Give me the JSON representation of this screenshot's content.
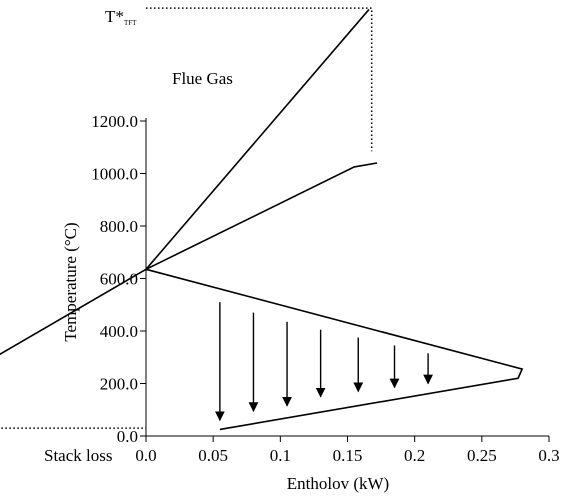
{
  "chart_data": {
    "type": "line",
    "title": "",
    "xlabel": "Entholov (kW)",
    "ylabel": "Temperature (°C)",
    "xlim": [
      0.0,
      0.3
    ],
    "ylim": [
      0.0,
      1200.0
    ],
    "x_ticks": [
      "0.0",
      "0.05",
      "0.1",
      "0.15",
      "0.2",
      "0.25",
      "0.3"
    ],
    "x_tick_values": [
      0.0,
      0.05,
      0.1,
      0.15,
      0.2,
      0.25,
      0.3
    ],
    "y_ticks": [
      "0.0",
      "200.0",
      "400.0",
      "600.0",
      "800.0",
      "1000.0",
      "1200.0"
    ],
    "y_tick_values": [
      0,
      200,
      400,
      600,
      800,
      1000,
      1200
    ],
    "top_label": {
      "main": "T*",
      "sub": "TFT"
    },
    "stack_label": "Stack loss",
    "annotation": "Flue Gas",
    "colors": {
      "line": "#000000",
      "background": "#ffffff"
    },
    "series": [
      {
        "x": [
          0.0,
          0.166
        ],
        "y": [
          635,
          1625
        ]
      },
      {
        "x": [
          0.0,
          0.155,
          0.172
        ],
        "y": [
          635,
          1025,
          1040
        ]
      },
      {
        "x": [
          0.0,
          0.28,
          0.277,
          0.055
        ],
        "y": [
          635,
          255,
          220,
          25
        ]
      }
    ],
    "dotted_lines": [
      {
        "x": [
          0.0,
          0.168,
          0.168
        ],
        "y": [
          1630,
          1630,
          1085
        ]
      },
      {
        "x": [
          -0.2,
          0.0
        ],
        "y": [
          30,
          30
        ]
      }
    ],
    "arrows": [
      {
        "x": 0.055,
        "y_from": 510,
        "y_to": 60
      },
      {
        "x": 0.08,
        "y_from": 470,
        "y_to": 95
      },
      {
        "x": 0.105,
        "y_from": 435,
        "y_to": 115
      },
      {
        "x": 0.13,
        "y_from": 405,
        "y_to": 150
      },
      {
        "x": 0.158,
        "y_from": 375,
        "y_to": 170
      },
      {
        "x": 0.185,
        "y_from": 345,
        "y_to": 185
      },
      {
        "x": 0.21,
        "y_from": 315,
        "y_to": 200
      }
    ],
    "stack_arrow": {
      "x_from": 0.0,
      "y_from": 635,
      "x_to": -0.2,
      "y_to": 40
    }
  }
}
